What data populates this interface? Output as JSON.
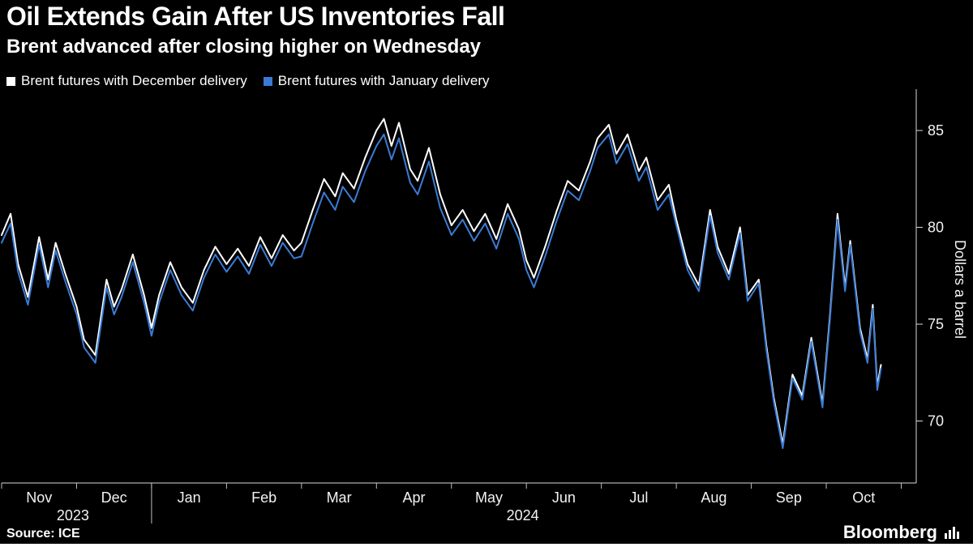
{
  "header": {
    "title": "Oil Extends Gain After US Inventories Fall",
    "subtitle": "Brent advanced after closing higher on Wednesday"
  },
  "legend": [
    {
      "label": "Brent futures with December delivery",
      "color": "#ffffff"
    },
    {
      "label": "Brent futures with January delivery",
      "color": "#3a7bd5"
    }
  ],
  "footer": {
    "source": "Source: ICE",
    "brand": "Bloomberg"
  },
  "colors": {
    "background": "#000000",
    "text": "#ffffff",
    "axis": "#d9d9d9",
    "series_white": "#ffffff",
    "series_blue": "#3a7bd5"
  },
  "chart_data": {
    "type": "line",
    "title": "Oil Extends Gain After US Inventories Fall",
    "subtitle": "Brent advanced after closing higher on Wednesday",
    "ylabel": "Dollars a barrel",
    "ylim": [
      66.8,
      86.8
    ],
    "yticks": [
      70,
      75,
      80,
      85
    ],
    "grid": false,
    "legend_position": "top-left",
    "x_unit": "months since 2023-11-01",
    "xlim_months": [
      0,
      12.2
    ],
    "x_axis_months": [
      "Nov",
      "Dec",
      "Jan",
      "Feb",
      "Mar",
      "Apr",
      "May",
      "Jun",
      "Jul",
      "Aug",
      "Sep",
      "Oct"
    ],
    "x_axis_years": [
      {
        "label": "2023",
        "month_position": 0.95
      },
      {
        "label": "2024",
        "month_position": 6.95
      }
    ],
    "year_divider_month": 2,
    "x": [
      0,
      0.12,
      0.22,
      0.35,
      0.5,
      0.62,
      0.72,
      0.85,
      1.0,
      1.1,
      1.25,
      1.4,
      1.5,
      1.6,
      1.75,
      1.9,
      2.0,
      2.1,
      2.25,
      2.4,
      2.55,
      2.7,
      2.85,
      3.0,
      3.15,
      3.3,
      3.45,
      3.6,
      3.75,
      3.9,
      4.0,
      4.15,
      4.3,
      4.45,
      4.55,
      4.7,
      4.85,
      5.0,
      5.1,
      5.2,
      5.3,
      5.45,
      5.55,
      5.7,
      5.85,
      6.0,
      6.15,
      6.3,
      6.45,
      6.6,
      6.75,
      6.9,
      7.0,
      7.1,
      7.25,
      7.4,
      7.55,
      7.7,
      7.85,
      7.95,
      8.1,
      8.2,
      8.35,
      8.5,
      8.6,
      8.75,
      8.9,
      9.0,
      9.15,
      9.3,
      9.45,
      9.55,
      9.7,
      9.85,
      9.95,
      10.1,
      10.2,
      10.3,
      10.42,
      10.55,
      10.68,
      10.8,
      10.95,
      11.05,
      11.15,
      11.25,
      11.32,
      11.45,
      11.55,
      11.62,
      11.68,
      11.73
    ],
    "series": [
      {
        "name": "Brent futures with December delivery",
        "color": "#ffffff",
        "values": [
          79.6,
          80.7,
          78.1,
          76.4,
          79.5,
          77.3,
          79.2,
          77.6,
          75.9,
          74.2,
          73.4,
          77.3,
          75.9,
          76.8,
          78.6,
          76.5,
          74.8,
          76.5,
          78.2,
          76.9,
          76.1,
          77.8,
          79.0,
          78.1,
          78.9,
          78.0,
          79.5,
          78.4,
          79.6,
          78.8,
          79.2,
          80.9,
          82.5,
          81.6,
          82.8,
          82.0,
          83.6,
          85.0,
          85.6,
          84.2,
          85.4,
          83.0,
          82.4,
          84.1,
          81.7,
          80.1,
          80.9,
          79.8,
          80.7,
          79.4,
          81.2,
          79.9,
          78.3,
          77.4,
          79.0,
          80.8,
          82.4,
          81.9,
          83.4,
          84.6,
          85.3,
          83.8,
          84.8,
          82.9,
          83.6,
          81.4,
          82.2,
          80.4,
          78.1,
          77.0,
          80.9,
          79.0,
          77.6,
          80.0,
          76.5,
          77.3,
          73.9,
          71.2,
          68.8,
          72.4,
          71.3,
          74.3,
          70.9,
          75.5,
          80.7,
          76.9,
          79.3,
          74.8,
          73.2,
          76.0,
          71.8,
          72.9
        ]
      },
      {
        "name": "Brent futures with January delivery",
        "color": "#3a7bd5",
        "values": [
          79.2,
          80.2,
          77.7,
          76.0,
          79.1,
          76.9,
          78.8,
          77.2,
          75.5,
          73.8,
          73.0,
          76.9,
          75.5,
          76.4,
          78.2,
          76.1,
          74.4,
          76.1,
          77.8,
          76.5,
          75.7,
          77.4,
          78.6,
          77.7,
          78.5,
          77.6,
          79.1,
          78.0,
          79.2,
          78.4,
          78.5,
          80.2,
          81.8,
          80.9,
          82.1,
          81.3,
          82.9,
          84.2,
          84.8,
          83.5,
          84.6,
          82.3,
          81.7,
          83.4,
          81.0,
          79.6,
          80.4,
          79.3,
          80.2,
          78.9,
          80.7,
          79.4,
          77.8,
          76.9,
          78.5,
          80.3,
          81.9,
          81.4,
          82.9,
          84.1,
          84.8,
          83.3,
          84.3,
          82.4,
          83.1,
          80.9,
          81.7,
          80.1,
          77.8,
          76.7,
          80.6,
          78.7,
          77.3,
          79.7,
          76.2,
          77.1,
          73.7,
          71.0,
          68.6,
          72.2,
          71.1,
          74.1,
          70.7,
          75.3,
          80.4,
          76.7,
          79.1,
          74.6,
          73.0,
          75.8,
          71.6,
          72.7
        ]
      }
    ]
  }
}
